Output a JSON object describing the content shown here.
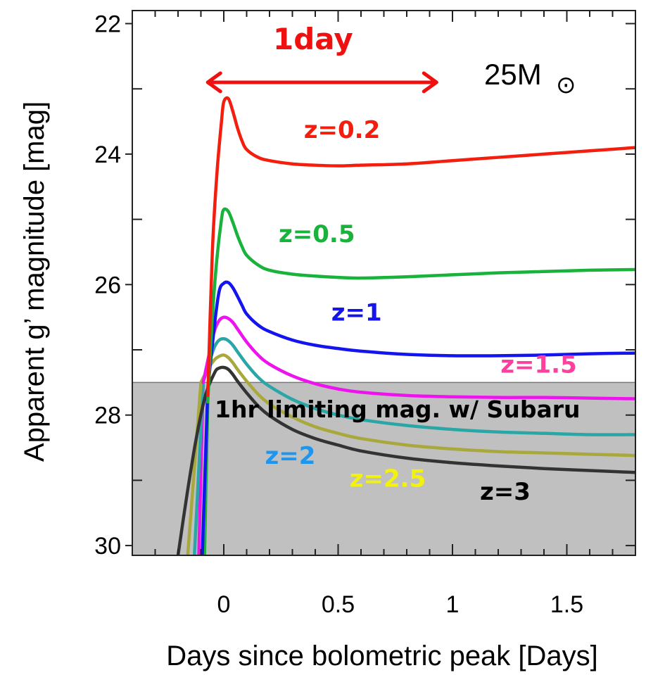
{
  "chart_data": {
    "type": "line",
    "xlabel": "Days since bolometric peak [Days]",
    "ylabel": "Apparent g’ magnitude [mag]",
    "xlim": [
      -0.4,
      1.8
    ],
    "ylim": [
      30.15,
      21.8
    ],
    "y_inverted": true,
    "x_ticks": [
      0,
      0.5,
      1,
      1.5
    ],
    "x_tick_labels": [
      "0",
      "0.5",
      "1",
      "1.5"
    ],
    "y_ticks": [
      22,
      24,
      26,
      28,
      30
    ],
    "y_tick_labels": [
      "22",
      "24",
      "26",
      "28",
      "30"
    ],
    "grid": false,
    "mass_label": "25M",
    "mass_symbol": "⊙",
    "duration_label": "1day",
    "duration_arrow": {
      "x_start": -0.07,
      "x_end": 0.93,
      "y": 22.9,
      "color": "#f01010"
    },
    "limiting_magnitude": {
      "value": 27.5,
      "label": "1hr limiting mag. w/ Subaru",
      "color": "#c0c0c0"
    },
    "series": [
      {
        "name": "z=0.2",
        "color": "#f41e0e",
        "x": [
          -0.07,
          -0.05,
          -0.03,
          -0.01,
          0.0,
          0.02,
          0.04,
          0.06,
          0.08,
          0.1,
          0.15,
          0.2,
          0.3,
          0.4,
          0.5,
          0.6,
          0.8,
          1.0,
          1.2,
          1.4,
          1.6,
          1.8
        ],
        "y": [
          27.7,
          25.5,
          24.3,
          23.5,
          23.2,
          23.15,
          23.35,
          23.6,
          23.8,
          23.93,
          24.05,
          24.1,
          24.15,
          24.17,
          24.18,
          24.17,
          24.15,
          24.1,
          24.05,
          24.0,
          23.95,
          23.9
        ]
      },
      {
        "name": "z=0.5",
        "color": "#19b23a",
        "x": [
          -0.07,
          -0.05,
          -0.03,
          -0.01,
          0.0,
          0.02,
          0.04,
          0.06,
          0.08,
          0.1,
          0.15,
          0.2,
          0.3,
          0.4,
          0.5,
          0.6,
          0.8,
          1.0,
          1.2,
          1.4,
          1.6,
          1.8
        ],
        "y": [
          27.8,
          26.5,
          25.6,
          25.0,
          24.85,
          24.88,
          25.05,
          25.25,
          25.42,
          25.55,
          25.7,
          25.78,
          25.84,
          25.87,
          25.89,
          25.9,
          25.88,
          25.85,
          25.82,
          25.8,
          25.78,
          25.77
        ]
      },
      {
        "name": "z=1",
        "color": "#1414ee",
        "x": [
          -0.07,
          -0.04,
          -0.02,
          0.0,
          0.02,
          0.04,
          0.06,
          0.08,
          0.1,
          0.15,
          0.2,
          0.3,
          0.4,
          0.5,
          0.6,
          0.8,
          1.0,
          1.2,
          1.4,
          1.6,
          1.8
        ],
        "y": [
          27.6,
          26.6,
          26.1,
          25.98,
          25.97,
          26.05,
          26.18,
          26.32,
          26.45,
          26.62,
          26.72,
          26.85,
          26.93,
          26.98,
          27.02,
          27.07,
          27.09,
          27.09,
          27.08,
          27.06,
          27.05
        ]
      },
      {
        "name": "z=1.5",
        "color": "#ee12ee",
        "x": [
          -0.09,
          -0.06,
          -0.04,
          -0.02,
          0.0,
          0.02,
          0.04,
          0.06,
          0.1,
          0.15,
          0.2,
          0.3,
          0.4,
          0.5,
          0.6,
          0.8,
          1.0,
          1.2,
          1.4,
          1.6,
          1.8
        ],
        "y": [
          27.5,
          27.0,
          26.7,
          26.55,
          26.5,
          26.52,
          26.58,
          26.68,
          26.88,
          27.08,
          27.22,
          27.4,
          27.52,
          27.6,
          27.65,
          27.7,
          27.72,
          27.73,
          27.73,
          27.74,
          27.75
        ]
      },
      {
        "name": "z=2",
        "color": "#2aa6a6",
        "x": [
          -0.09,
          -0.06,
          -0.04,
          -0.02,
          0.0,
          0.02,
          0.04,
          0.06,
          0.1,
          0.15,
          0.2,
          0.3,
          0.4,
          0.5,
          0.6,
          0.8,
          1.0,
          1.2,
          1.4,
          1.6,
          1.8
        ],
        "y": [
          27.5,
          27.15,
          26.95,
          26.85,
          26.83,
          26.86,
          26.93,
          27.03,
          27.22,
          27.42,
          27.56,
          27.76,
          27.9,
          28.0,
          28.07,
          28.16,
          28.22,
          28.26,
          28.28,
          28.3,
          28.3
        ]
      },
      {
        "name": "z=2.5",
        "color": "#a8a83c",
        "x": [
          -0.1,
          -0.07,
          -0.04,
          -0.02,
          0.0,
          0.02,
          0.04,
          0.06,
          0.1,
          0.15,
          0.2,
          0.3,
          0.4,
          0.5,
          0.6,
          0.8,
          1.0,
          1.2,
          1.4,
          1.6,
          1.8
        ],
        "y": [
          27.5,
          27.3,
          27.15,
          27.1,
          27.08,
          27.12,
          27.2,
          27.3,
          27.48,
          27.68,
          27.83,
          28.03,
          28.18,
          28.28,
          28.36,
          28.46,
          28.52,
          28.56,
          28.58,
          28.6,
          28.62
        ]
      },
      {
        "name": "z=3",
        "color": "#333333",
        "x": [
          -0.2,
          -0.16,
          -0.12,
          -0.08,
          -0.04,
          -0.02,
          0.0,
          0.02,
          0.04,
          0.06,
          0.1,
          0.15,
          0.2,
          0.3,
          0.4,
          0.5,
          0.6,
          0.8,
          1.0,
          1.2,
          1.4,
          1.6,
          1.8
        ],
        "y": [
          30.15,
          29.2,
          28.35,
          27.7,
          27.35,
          27.28,
          27.27,
          27.3,
          27.38,
          27.48,
          27.66,
          27.86,
          28.01,
          28.22,
          28.36,
          28.46,
          28.55,
          28.66,
          28.73,
          28.78,
          28.82,
          28.85,
          28.88
        ]
      }
    ],
    "drops": [
      {
        "color": "#f41e0e",
        "x_top": -0.07,
        "x_bottom": -0.09,
        "y_top": 27.7,
        "y_bottom": 30.15
      },
      {
        "color": "#19b23a",
        "x_top": -0.07,
        "x_bottom": -0.085,
        "y_top": 27.8,
        "y_bottom": 30.15
      },
      {
        "color": "#1414ee",
        "x_top": -0.07,
        "x_bottom": -0.095,
        "y_top": 27.6,
        "y_bottom": 30.15
      },
      {
        "color": "#ee12ee",
        "x_top": -0.09,
        "x_bottom": -0.11,
        "y_top": 27.5,
        "y_bottom": 30.15
      },
      {
        "color": "#2aa6a6",
        "x_top": -0.09,
        "x_bottom": -0.13,
        "y_top": 27.5,
        "y_bottom": 30.15
      },
      {
        "color": "#a8a83c",
        "x_top": -0.1,
        "x_bottom": -0.16,
        "y_top": 27.5,
        "y_bottom": 30.15
      }
    ],
    "labels": [
      {
        "text": "z=0.2",
        "color": "#f41e0e",
        "x": 0.35,
        "y": 23.75
      },
      {
        "text": "z=0.5",
        "color": "#19b23a",
        "x": 0.24,
        "y": 25.35
      },
      {
        "text": "z=1",
        "color": "#1414ee",
        "x": 0.47,
        "y": 26.55
      },
      {
        "text": "z=1.5",
        "color": "#ff3fa0",
        "x": 1.21,
        "y": 27.35
      },
      {
        "text": "z=2",
        "color": "#1e96ee",
        "x": 0.18,
        "y": 28.75
      },
      {
        "text": "z=2.5",
        "color": "#f2f20a",
        "x": 0.55,
        "y": 29.1
      },
      {
        "text": "z=3",
        "color": "#000000",
        "x": 1.12,
        "y": 29.3
      }
    ]
  }
}
